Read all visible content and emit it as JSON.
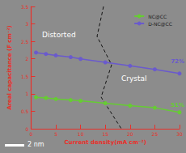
{
  "chart_data": {
    "type": "line",
    "x_label": "Current density(mA cm⁻²)",
    "y_label": "Areal capacitance (F cm⁻²)",
    "xlim": [
      0,
      30
    ],
    "xticks": [
      0,
      5,
      10,
      15,
      20,
      25,
      30
    ],
    "ylim": [
      0,
      3.5
    ],
    "yticks": [
      0,
      0.5,
      1.0,
      1.5,
      2.0,
      2.5,
      3.0,
      3.5
    ],
    "legend": "upper right",
    "marker": "circle",
    "series": [
      {
        "name": "NC@CC",
        "color": "#66cc33",
        "x": [
          1,
          3,
          5,
          8,
          10,
          15,
          20,
          25,
          30
        ],
        "values": [
          0.9,
          0.88,
          0.85,
          0.82,
          0.8,
          0.73,
          0.66,
          0.6,
          0.47
        ]
      },
      {
        "name": "D-NC@CC",
        "color": "#6a5acd",
        "x": [
          1,
          3,
          5,
          8,
          10,
          15,
          20,
          25,
          30
        ],
        "values": [
          2.18,
          2.14,
          2.1,
          2.05,
          2.0,
          1.9,
          1.8,
          1.7,
          1.58
        ]
      }
    ],
    "annotations": [
      "Distorted",
      "Crystal",
      "2 nm",
      "72%",
      "51%"
    ]
  }
}
